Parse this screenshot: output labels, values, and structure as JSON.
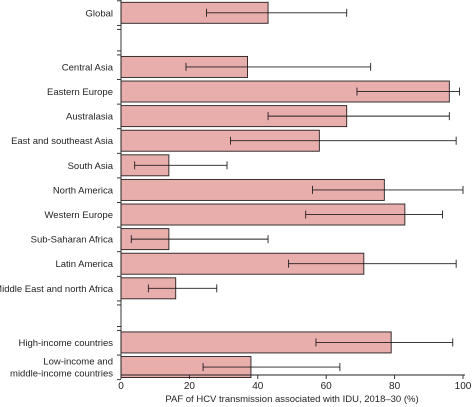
{
  "chart_data": {
    "type": "bar",
    "orientation": "horizontal",
    "xlabel": "PAF of HCV transmission associated with IDU, 2018–30 (%)",
    "xlim": [
      0,
      100
    ],
    "xticks": [
      0,
      20,
      40,
      60,
      80,
      100
    ],
    "grid": false,
    "error_bars": true,
    "bar_color": "#e8aeac",
    "groups": [
      {
        "rows": [
          {
            "label": [
              "Global"
            ],
            "value": 43,
            "low": 25,
            "high": 66
          }
        ]
      },
      {
        "rows": [
          {
            "label": [
              "Central Asia"
            ],
            "value": 37,
            "low": 19,
            "high": 73
          },
          {
            "label": [
              "Eastern Europe"
            ],
            "value": 96,
            "low": 69,
            "high": 99
          },
          {
            "label": [
              "Australasia"
            ],
            "value": 66,
            "low": 43,
            "high": 96
          },
          {
            "label": [
              "East and southeast Asia"
            ],
            "value": 58,
            "low": 32,
            "high": 98
          },
          {
            "label": [
              "South Asia"
            ],
            "value": 14,
            "low": 4,
            "high": 31
          },
          {
            "label": [
              "North America"
            ],
            "value": 77,
            "low": 56,
            "high": 100
          },
          {
            "label": [
              "Western Europe"
            ],
            "value": 83,
            "low": 54,
            "high": 94
          },
          {
            "label": [
              "Sub-Saharan Africa"
            ],
            "value": 14,
            "low": 3,
            "high": 43
          },
          {
            "label": [
              "Latin America"
            ],
            "value": 71,
            "low": 49,
            "high": 98
          },
          {
            "label": [
              "Middle East and north Africa"
            ],
            "value": 16,
            "low": 8,
            "high": 28
          }
        ]
      },
      {
        "rows": [
          {
            "label": [
              "High-income countries"
            ],
            "value": 79,
            "low": 57,
            "high": 97
          },
          {
            "label": [
              "Low-income and",
              "middle-income countries"
            ],
            "value": 38,
            "low": 24,
            "high": 64
          }
        ]
      }
    ]
  }
}
